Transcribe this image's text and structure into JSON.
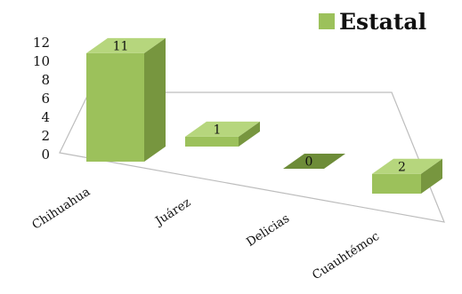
{
  "chart_data": {
    "type": "bar",
    "categories": [
      "Chihuahua",
      "Juárez",
      "Delicias",
      "Cuauhtémoc"
    ],
    "series": [
      {
        "name": "Estatal",
        "values": [
          11,
          1,
          0,
          2
        ]
      }
    ],
    "data_labels": [
      "11",
      "1",
      "0",
      "2"
    ],
    "y_ticks": [
      "0",
      "2",
      "4",
      "6",
      "8",
      "10",
      "12"
    ],
    "ylim": [
      0,
      12
    ],
    "grid": false,
    "legend_position": "top-right",
    "style": "3d-column",
    "colors": {
      "bar_front": "#9cc15b",
      "bar_side": "#77963f",
      "bar_top": "#b6d67d",
      "zero_bar": "#6d8c38",
      "floor_stroke": "#bdbdbd",
      "legend_swatch": "#9cc15b"
    }
  }
}
